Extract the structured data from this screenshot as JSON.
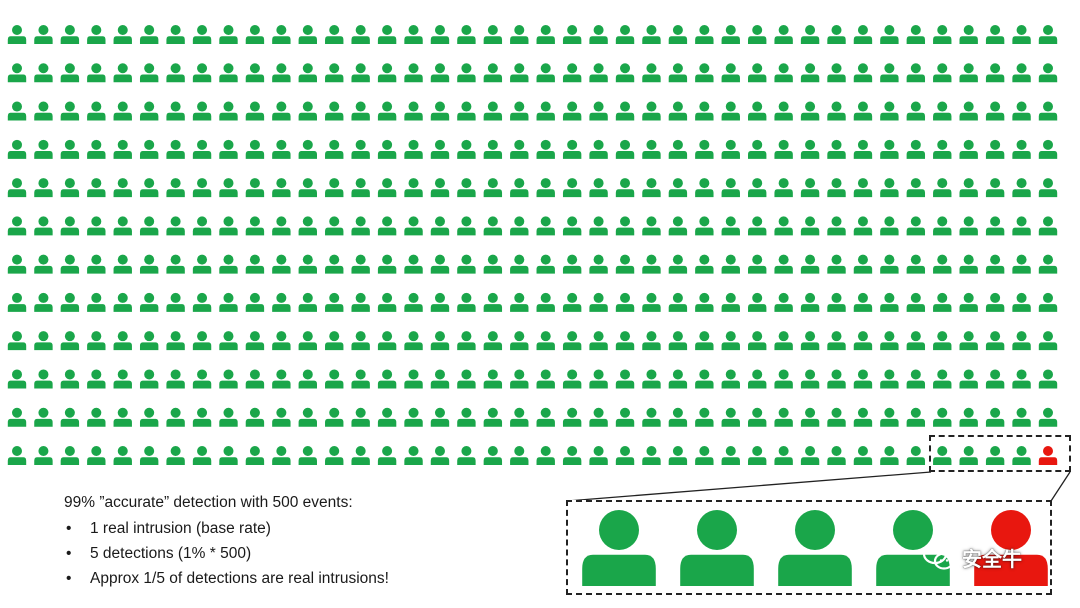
{
  "figure": {
    "total_events": 500,
    "grid_columns": 40,
    "grid_rows": 12,
    "shown_icons": 480,
    "real_intrusions": 1,
    "detections": 5,
    "colors": {
      "normal_event": "#1aa64a",
      "real_intrusion": "#e8170f",
      "dashed_border": "#222222"
    },
    "icon": "person-icon"
  },
  "caption": {
    "heading": "99% ”accurate” detection with 500 events:",
    "bullets": [
      "1 real intrusion (base rate)",
      "5 detections (1% * 500)",
      "Approx 1/5 of detections are real intrusions!"
    ]
  },
  "zoom": {
    "icons": [
      {
        "kind": "normal"
      },
      {
        "kind": "normal"
      },
      {
        "kind": "normal"
      },
      {
        "kind": "normal"
      },
      {
        "kind": "intrusion"
      }
    ]
  },
  "watermark": {
    "text": "安全牛",
    "icon": "wechat-icon"
  }
}
